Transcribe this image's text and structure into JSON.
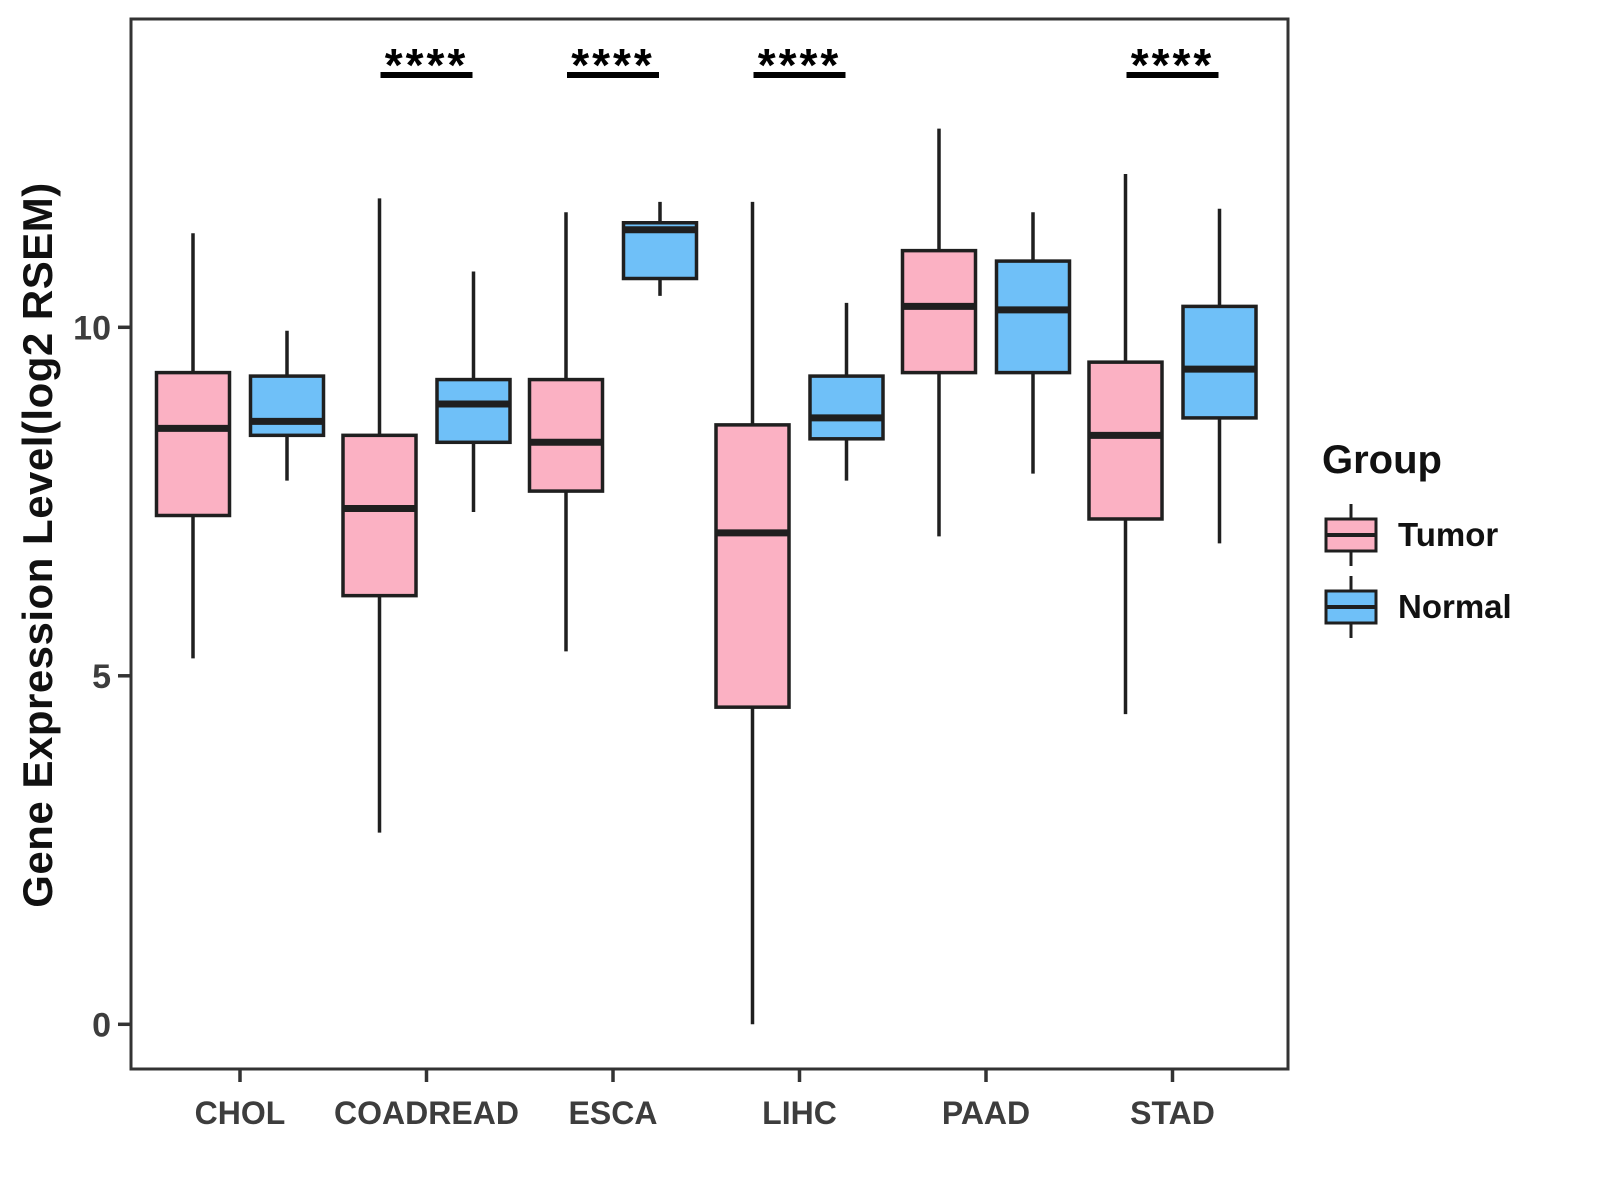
{
  "chart_data": {
    "type": "boxplot",
    "title": "",
    "xlabel": "",
    "ylabel": "Gene Expression Level(log2 RSEM)",
    "grid": false,
    "y_ticks": [
      0,
      5,
      10
    ],
    "ylim": [
      -0.65,
      14.4
    ],
    "categories": [
      "CHOL",
      "COADREAD",
      "ESCA",
      "LIHC",
      "PAAD",
      "STAD"
    ],
    "box_stats_order": [
      "whisker_low",
      "q1",
      "median",
      "q3",
      "whisker_high"
    ],
    "series": [
      {
        "name": "Tumor",
        "color": "#FBB1C3",
        "boxes": [
          [
            5.25,
            7.3,
            8.55,
            9.35,
            11.35
          ],
          [
            2.75,
            6.15,
            7.4,
            8.45,
            11.85
          ],
          [
            5.35,
            7.65,
            8.35,
            9.25,
            11.65
          ],
          [
            0.0,
            4.55,
            7.05,
            8.6,
            11.8
          ],
          [
            7.0,
            9.35,
            10.3,
            11.1,
            12.85
          ],
          [
            4.45,
            7.25,
            8.45,
            9.5,
            12.2
          ]
        ]
      },
      {
        "name": "Normal",
        "color": "#6FC0F8",
        "boxes": [
          [
            7.8,
            8.45,
            8.65,
            9.3,
            9.95
          ],
          [
            7.35,
            8.35,
            8.9,
            9.25,
            10.8
          ],
          [
            10.45,
            10.7,
            11.4,
            11.5,
            11.8
          ],
          [
            7.8,
            8.4,
            8.7,
            9.3,
            10.35
          ],
          [
            7.9,
            9.35,
            10.25,
            10.95,
            11.65
          ],
          [
            6.9,
            8.7,
            9.4,
            10.3,
            11.7
          ]
        ]
      }
    ],
    "significance": {
      "label": "****",
      "categories": [
        "COADREAD",
        "ESCA",
        "LIHC",
        "STAD"
      ]
    },
    "legend": {
      "title": "Group",
      "position": "right",
      "entries": [
        "Tumor",
        "Normal"
      ]
    },
    "colors": {
      "box_outline": "#1f1f1f",
      "panel_border": "#333333",
      "tick_text": "#3d3d3d",
      "significance": "#000000"
    }
  }
}
